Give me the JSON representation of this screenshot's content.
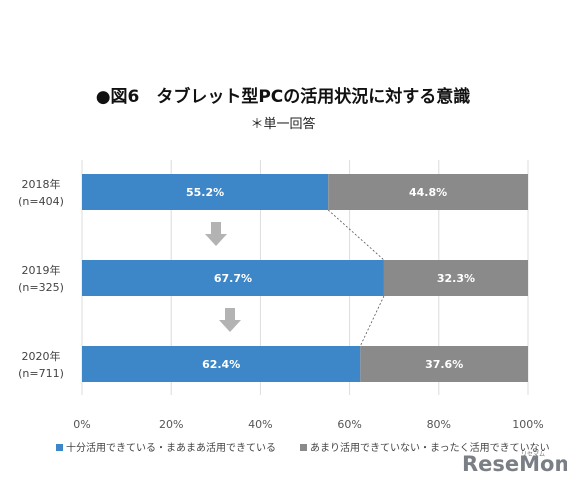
{
  "chart_data": {
    "type": "bar",
    "orientation": "horizontal",
    "stacked": true,
    "title": "●図6　タブレット型PCの活用状況に対する意識",
    "subtitle": "＊単一回答",
    "categories": [
      {
        "year": "2018年",
        "n": "(n=404)"
      },
      {
        "year": "2019年",
        "n": "(n=325)"
      },
      {
        "year": "2020年",
        "n": "(n=711)"
      }
    ],
    "series": [
      {
        "name": "十分活用できている・まあまあ活用できている",
        "color": "#3d87c9",
        "values": [
          55.2,
          67.7,
          62.4
        ],
        "labels": [
          "55.2%",
          "67.7%",
          "62.4%"
        ]
      },
      {
        "name": "あまり活用できていない・まったく活用できていない",
        "color": "#8a8a8a",
        "values": [
          44.8,
          32.3,
          37.6
        ],
        "labels": [
          "44.8%",
          "32.3%",
          "37.6%"
        ]
      }
    ],
    "xlim": [
      0,
      100
    ],
    "xticks": [
      "0%",
      "20%",
      "40%",
      "60%",
      "80%",
      "100%"
    ],
    "grid": true,
    "legend_position": "bottom",
    "connector_lines": true,
    "arrows_between_bars": true
  },
  "brand": {
    "text": "ReseMom",
    "small": "リセマム",
    "color": "#7a7f86"
  }
}
